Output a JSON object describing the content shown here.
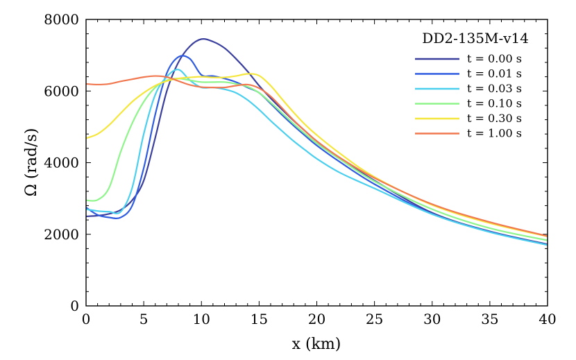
{
  "chart_data": {
    "type": "line",
    "title": "",
    "legend_title": "DD2-135M-v14",
    "legend_position": "top-right",
    "xlabel": "x (km)",
    "ylabel": "Ω (rad/s)",
    "xlim": [
      0,
      40
    ],
    "ylim": [
      0,
      8000
    ],
    "xticks": [
      0,
      5,
      10,
      15,
      20,
      25,
      30,
      35,
      40
    ],
    "yticks": [
      0,
      2000,
      4000,
      6000,
      8000
    ],
    "grid": false,
    "x": [
      0,
      1,
      2,
      3,
      4,
      5,
      6,
      7,
      8,
      9,
      10,
      11,
      12,
      13,
      14,
      15,
      16,
      17,
      18,
      19,
      20,
      22,
      25,
      30,
      35,
      40
    ],
    "series": [
      {
        "name": "t = 0.00 s",
        "color": "#3a3f9e",
        "values": [
          2500,
          2520,
          2570,
          2680,
          2950,
          3500,
          4700,
          6000,
          6800,
          7250,
          7450,
          7380,
          7200,
          6900,
          6550,
          6150,
          5800,
          5480,
          5170,
          4880,
          4600,
          4120,
          3500,
          2600,
          2080,
          1720
        ]
      },
      {
        "name": "t = 0.01 s",
        "color": "#2f5be0",
        "values": [
          2750,
          2540,
          2470,
          2470,
          2800,
          3850,
          5350,
          6500,
          6950,
          6900,
          6450,
          6420,
          6350,
          6250,
          6100,
          5950,
          5650,
          5330,
          5030,
          4750,
          4480,
          4020,
          3400,
          2570,
          2070,
          1700
        ]
      },
      {
        "name": "t = 0.03 s",
        "color": "#4bcfee",
        "values": [
          2700,
          2650,
          2630,
          2630,
          3300,
          4800,
          5900,
          6400,
          6600,
          6300,
          6100,
          6100,
          6050,
          5950,
          5750,
          5480,
          5170,
          4880,
          4600,
          4350,
          4110,
          3720,
          3280,
          2560,
          2060,
          1700
        ]
      },
      {
        "name": "t = 0.10 s",
        "color": "#8ef58a",
        "values": [
          2950,
          2960,
          3300,
          4300,
          5100,
          5700,
          6100,
          6300,
          6350,
          6300,
          6250,
          6250,
          6250,
          6200,
          6120,
          5950,
          5680,
          5380,
          5080,
          4800,
          4540,
          4100,
          3480,
          2700,
          2170,
          1830
        ]
      },
      {
        "name": "t = 0.30 s",
        "color": "#f5e63c",
        "values": [
          4680,
          4800,
          5050,
          5380,
          5700,
          5950,
          6150,
          6280,
          6350,
          6380,
          6400,
          6380,
          6380,
          6420,
          6480,
          6430,
          6150,
          5770,
          5400,
          5060,
          4770,
          4260,
          3600,
          2820,
          2310,
          1940
        ]
      },
      {
        "name": "t = 1.00 s",
        "color": "#f1774f",
        "values": [
          6200,
          6180,
          6200,
          6270,
          6330,
          6390,
          6420,
          6390,
          6280,
          6170,
          6110,
          6100,
          6100,
          6150,
          6180,
          6080,
          5850,
          5520,
          5180,
          4880,
          4600,
          4140,
          3570,
          2840,
          2340,
          1950
        ]
      }
    ]
  }
}
